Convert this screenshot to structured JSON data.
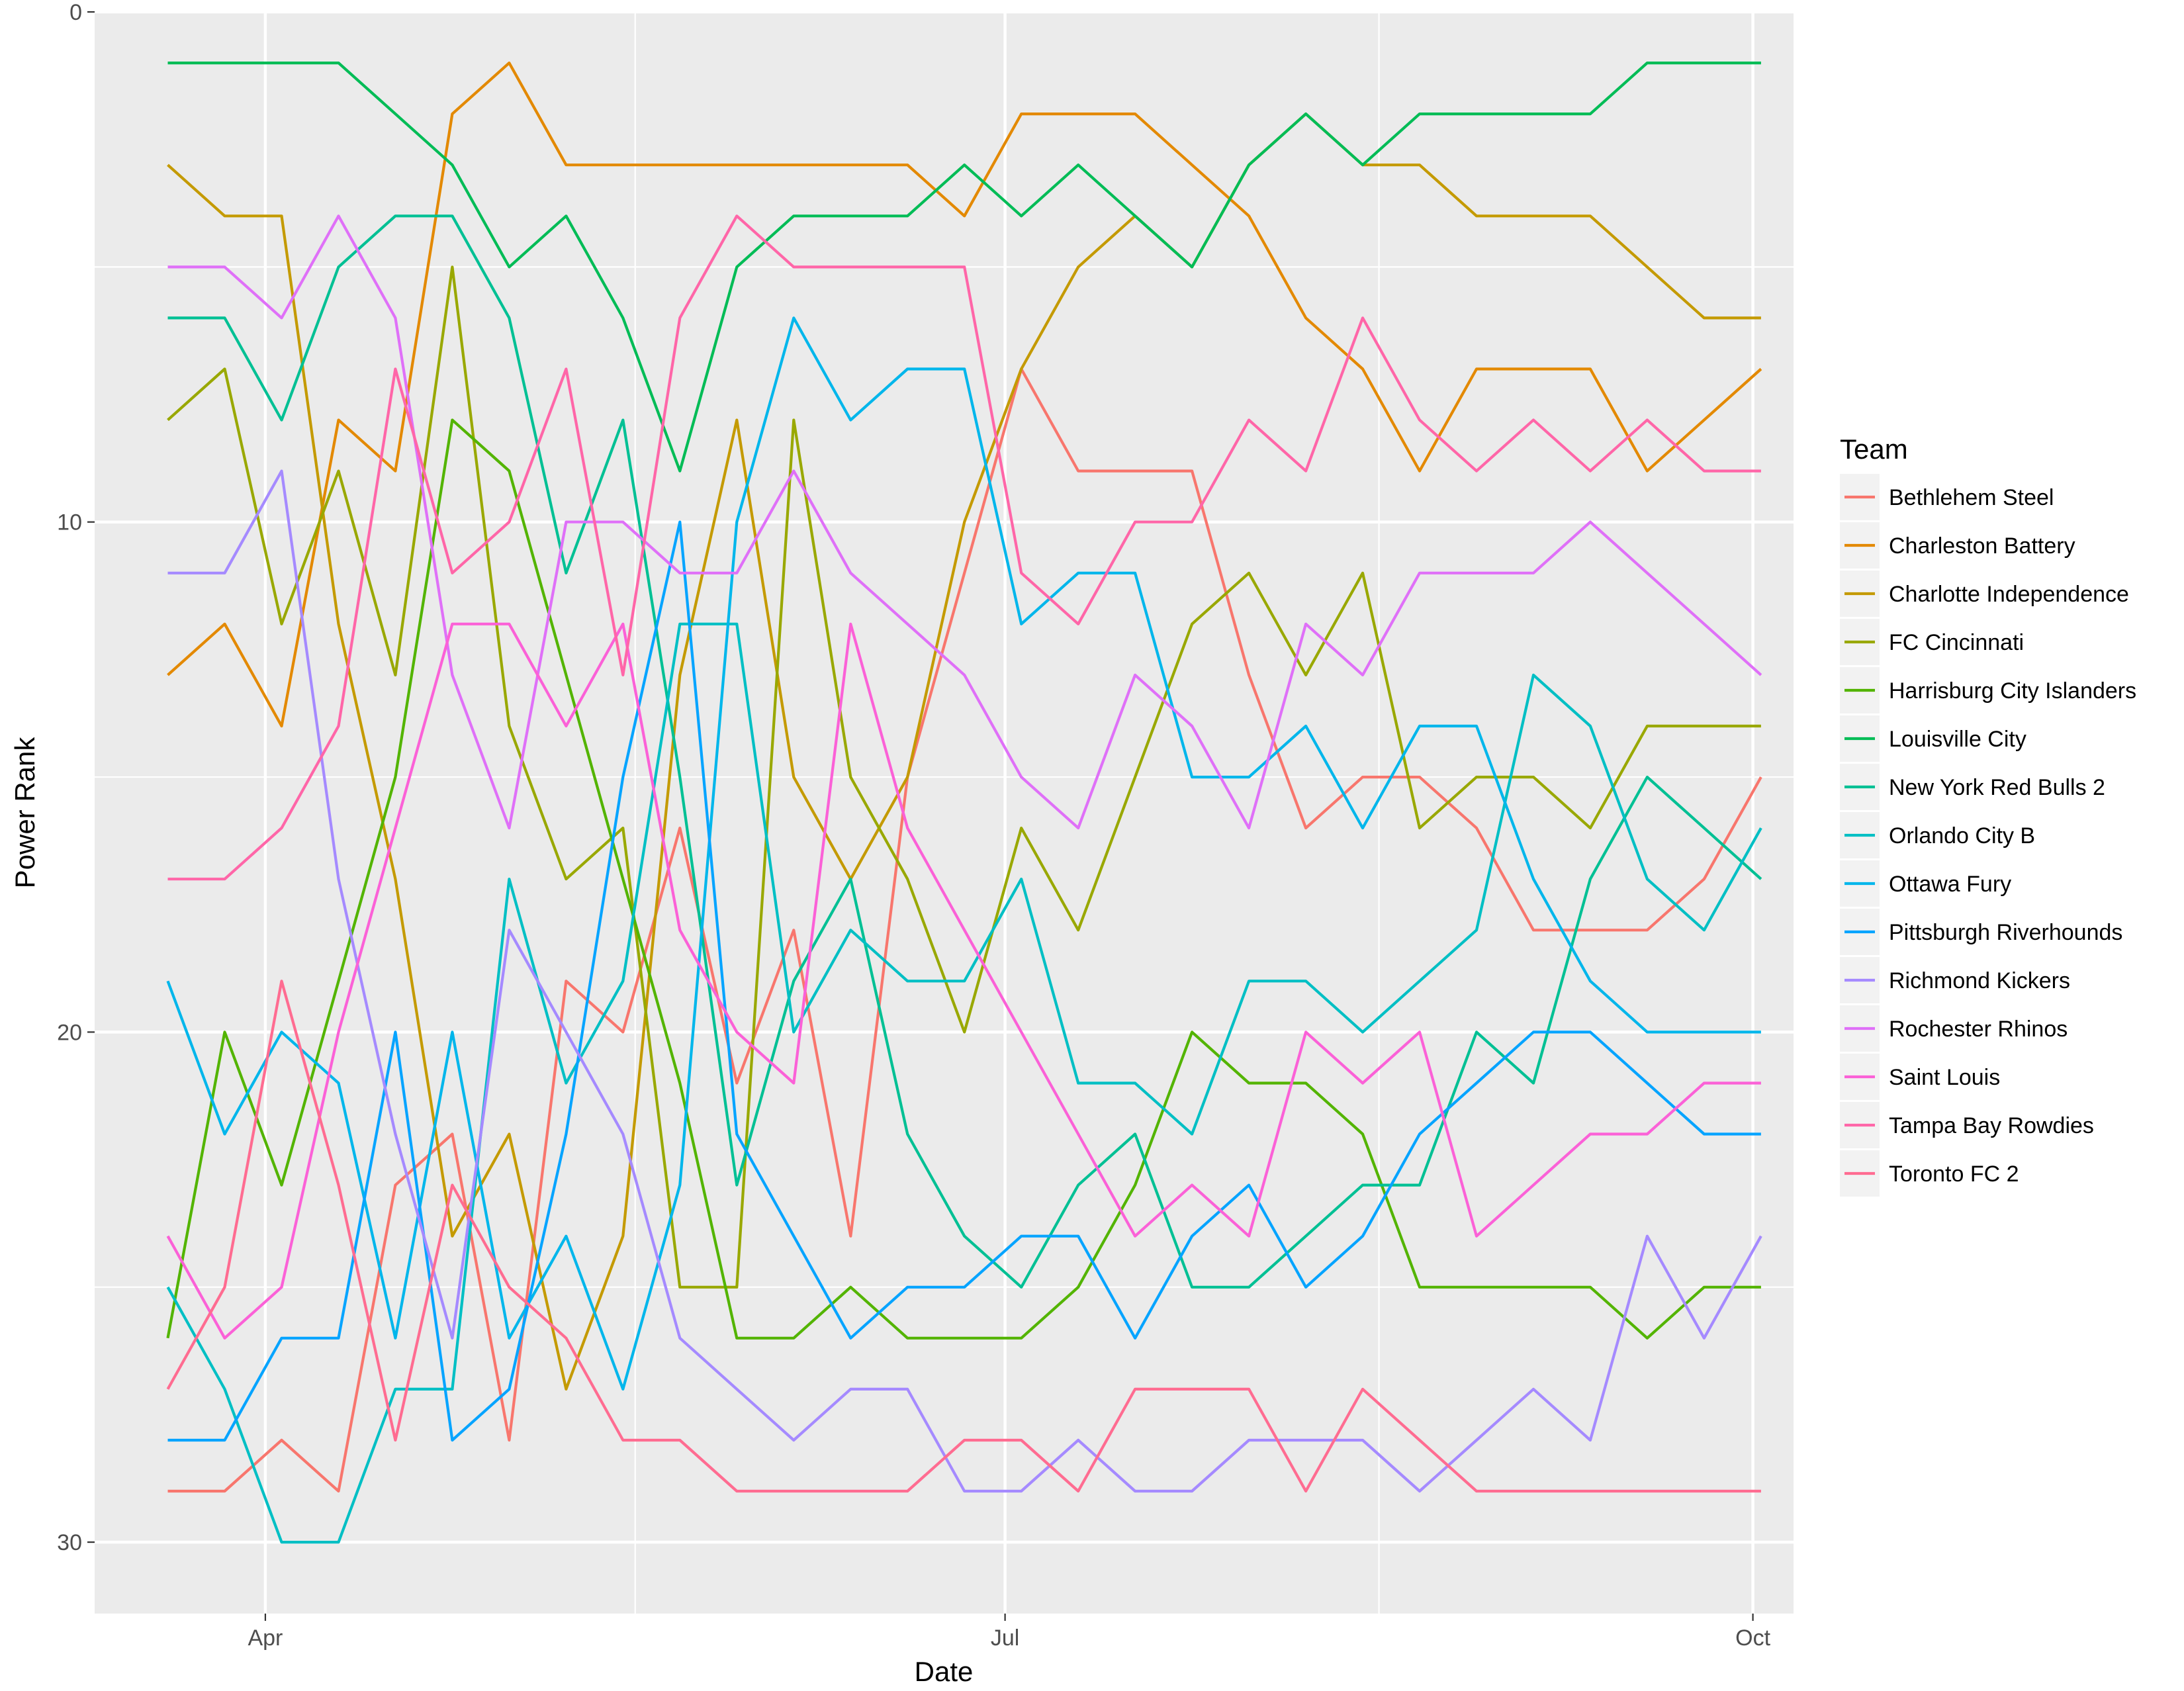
{
  "chart_data": {
    "type": "line",
    "title": "",
    "xlabel": "Date",
    "ylabel": "Power Rank",
    "y_reversed": true,
    "ylim": [
      0,
      31.4
    ],
    "xlim": [
      "2017-03-11",
      "2017-10-06"
    ],
    "x_ticks": [
      {
        "label": "Apr",
        "date": "2017-04-01"
      },
      {
        "label": "Jul",
        "date": "2017-07-01"
      },
      {
        "label": "Oct",
        "date": "2017-10-01"
      }
    ],
    "y_ticks": [
      0,
      10,
      20,
      30
    ],
    "grid": true,
    "legend_position": "right",
    "legend_title": "Team",
    "x": [
      "2017-03-20",
      "2017-03-27",
      "2017-04-03",
      "2017-04-10",
      "2017-04-17",
      "2017-04-24",
      "2017-05-01",
      "2017-05-08",
      "2017-05-15",
      "2017-05-22",
      "2017-05-29",
      "2017-06-05",
      "2017-06-12",
      "2017-06-19",
      "2017-06-26",
      "2017-07-03",
      "2017-07-10",
      "2017-07-17",
      "2017-07-24",
      "2017-07-31",
      "2017-08-07",
      "2017-08-14",
      "2017-08-21",
      "2017-08-28",
      "2017-09-04",
      "2017-09-11",
      "2017-09-18",
      "2017-09-25",
      "2017-10-02"
    ],
    "series": [
      {
        "name": "Bethlehem Steel",
        "color": "#F8766D",
        "values": [
          29,
          29,
          28,
          29,
          23,
          22,
          28,
          19,
          20,
          16,
          21,
          18,
          24,
          15,
          11,
          7,
          9,
          9,
          9,
          13,
          16,
          15,
          15,
          16,
          18,
          18,
          18,
          17,
          15
        ]
      },
      {
        "name": "Charleston Battery",
        "color": "#E38900",
        "values": [
          13,
          12,
          14,
          8,
          9,
          2,
          1,
          3,
          3,
          3,
          3,
          3,
          3,
          3,
          4,
          2,
          2,
          2,
          3,
          4,
          6,
          7,
          9,
          7,
          7,
          7,
          9,
          8,
          7
        ]
      },
      {
        "name": "Charlotte Independence",
        "color": "#C49A00",
        "values": [
          3,
          4,
          4,
          12,
          17,
          24,
          22,
          27,
          24,
          13,
          8,
          15,
          17,
          15,
          10,
          7,
          5,
          4,
          5,
          3,
          2,
          3,
          3,
          4,
          4,
          4,
          5,
          6,
          6
        ]
      },
      {
        "name": "FC Cincinnati",
        "color": "#99A800",
        "values": [
          8,
          7,
          12,
          9,
          13,
          5,
          14,
          17,
          16,
          25,
          25,
          8,
          15,
          17,
          20,
          16,
          18,
          15,
          12,
          11,
          13,
          11,
          16,
          15,
          15,
          16,
          14,
          14,
          14
        ]
      },
      {
        "name": "Harrisburg City Islanders",
        "color": "#53B400",
        "values": [
          26,
          20,
          23,
          19,
          15,
          8,
          9,
          13,
          17,
          21,
          26,
          26,
          25,
          26,
          26,
          26,
          25,
          23,
          20,
          21,
          21,
          22,
          25,
          25,
          25,
          25,
          26,
          25,
          25
        ]
      },
      {
        "name": "Louisville City",
        "color": "#00BC56",
        "values": [
          1,
          1,
          1,
          1,
          2,
          3,
          5,
          4,
          6,
          9,
          5,
          4,
          4,
          4,
          3,
          4,
          3,
          4,
          5,
          3,
          2,
          3,
          2,
          2,
          2,
          2,
          1,
          1,
          1
        ]
      },
      {
        "name": "New York Red Bulls 2",
        "color": "#00C094",
        "values": [
          6,
          6,
          8,
          5,
          4,
          4,
          6,
          11,
          8,
          15,
          23,
          19,
          17,
          22,
          24,
          25,
          23,
          22,
          25,
          25,
          24,
          23,
          23,
          20,
          21,
          17,
          15,
          16,
          17
        ]
      },
      {
        "name": "Orlando City B",
        "color": "#00BFC4",
        "values": [
          25,
          27,
          30,
          30,
          27,
          27,
          17,
          21,
          19,
          12,
          12,
          20,
          18,
          19,
          19,
          17,
          21,
          21,
          22,
          19,
          19,
          20,
          19,
          18,
          13,
          14,
          17,
          18,
          16
        ]
      },
      {
        "name": "Ottawa Fury",
        "color": "#00B6EB",
        "values": [
          19,
          22,
          20,
          21,
          26,
          20,
          26,
          24,
          27,
          23,
          10,
          6,
          8,
          7,
          7,
          12,
          11,
          11,
          15,
          15,
          14,
          16,
          14,
          14,
          17,
          19,
          20,
          20,
          20
        ]
      },
      {
        "name": "Pittsburgh Riverhounds",
        "color": "#06A4FF",
        "values": [
          28,
          28,
          26,
          26,
          20,
          28,
          27,
          22,
          15,
          10,
          22,
          24,
          26,
          25,
          25,
          24,
          24,
          26,
          24,
          23,
          25,
          24,
          22,
          21,
          20,
          20,
          21,
          22,
          22
        ]
      },
      {
        "name": "Richmond Kickers",
        "color": "#A58AFF",
        "values": [
          11,
          11,
          9,
          17,
          22,
          26,
          18,
          20,
          22,
          26,
          27,
          28,
          27,
          27,
          29,
          29,
          28,
          29,
          29,
          28,
          28,
          28,
          29,
          28,
          27,
          28,
          24,
          26,
          24
        ]
      },
      {
        "name": "Rochester Rhinos",
        "color": "#DF70F8",
        "values": [
          5,
          5,
          6,
          4,
          6,
          13,
          16,
          10,
          10,
          11,
          11,
          9,
          11,
          12,
          13,
          15,
          16,
          13,
          14,
          16,
          12,
          13,
          11,
          11,
          11,
          10,
          11,
          12,
          13
        ]
      },
      {
        "name": "Saint Louis",
        "color": "#FB61D7",
        "values": [
          24,
          26,
          25,
          20,
          16,
          12,
          12,
          14,
          12,
          18,
          20,
          21,
          12,
          16,
          18,
          20,
          22,
          24,
          23,
          24,
          20,
          21,
          20,
          24,
          23,
          22,
          22,
          21,
          21
        ]
      },
      {
        "name": "Tampa Bay Rowdies",
        "color": "#FF66A8",
        "values": [
          17,
          17,
          16,
          14,
          7,
          11,
          10,
          7,
          13,
          6,
          4,
          5,
          5,
          5,
          5,
          11,
          12,
          10,
          10,
          8,
          9,
          6,
          8,
          9,
          8,
          9,
          8,
          9,
          9
        ]
      },
      {
        "name": "Toronto FC 2",
        "color": "#FF6C91",
        "values": [
          27,
          25,
          19,
          23,
          28,
          23,
          25,
          26,
          28,
          28,
          29,
          29,
          29,
          29,
          28,
          28,
          29,
          27,
          27,
          27,
          29,
          27,
          28,
          29,
          29,
          29,
          29,
          29,
          29
        ]
      }
    ]
  }
}
